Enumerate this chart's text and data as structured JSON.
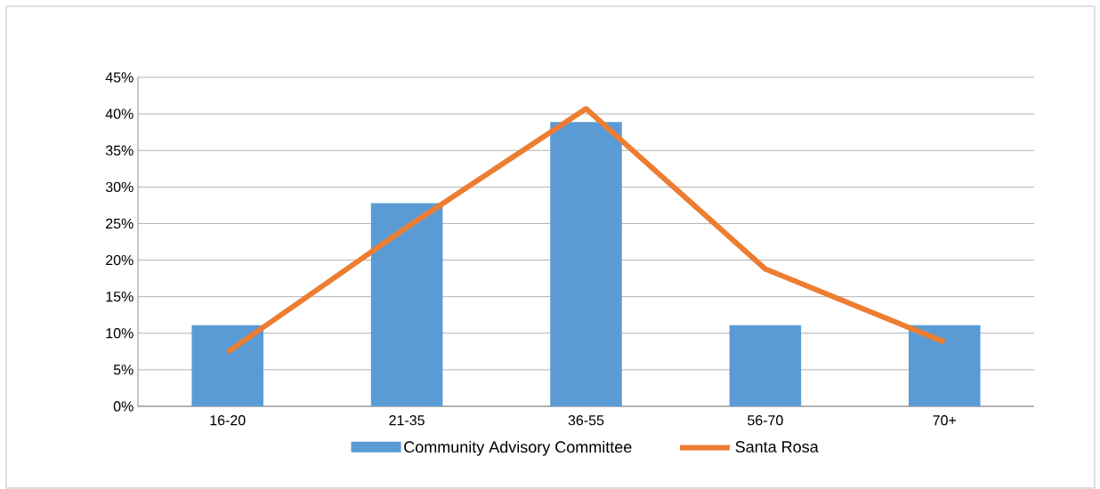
{
  "chart_data": {
    "type": "bar",
    "categories": [
      "16-20",
      "21-35",
      "36-55",
      "56-70",
      "70+"
    ],
    "series": [
      {
        "name": "Community Advisory Committee",
        "color": "#5b9bd5",
        "values": [
          11.1,
          27.8,
          38.9,
          11.1,
          11.1
        ]
      },
      {
        "name": "Santa Rosa",
        "type": "line",
        "color": "#ed7d31",
        "values": [
          7.4,
          24.5,
          40.7,
          18.8,
          8.8
        ]
      }
    ],
    "ylim": [
      0,
      45
    ],
    "yticks": [
      {
        "value": 0,
        "label": "0%"
      },
      {
        "value": 5,
        "label": "5%"
      },
      {
        "value": 10,
        "label": "10%"
      },
      {
        "value": 15,
        "label": "15%"
      },
      {
        "value": 20,
        "label": "20%"
      },
      {
        "value": 25,
        "label": "25%"
      },
      {
        "value": 30,
        "label": "30%"
      },
      {
        "value": 35,
        "label": "35%"
      },
      {
        "value": 40,
        "label": "40%"
      },
      {
        "value": 45,
        "label": "45%"
      }
    ],
    "grid": "y",
    "legend": "bottom"
  }
}
